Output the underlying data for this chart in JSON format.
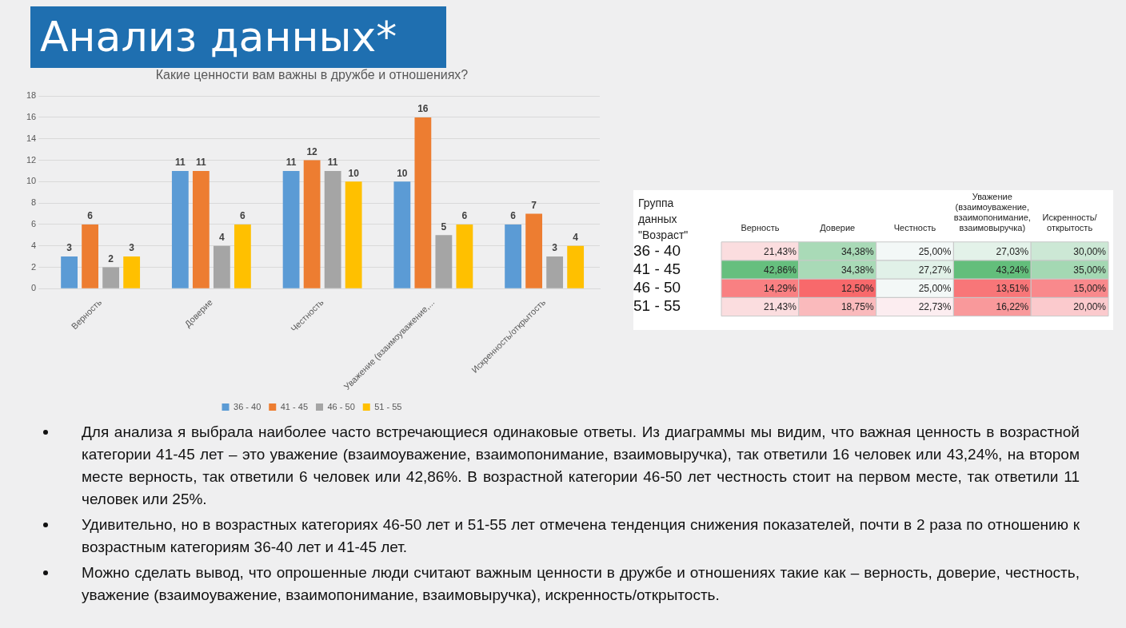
{
  "chart_data": [
    {
      "type": "bar",
      "title": "Анализ данных*",
      "subtitle": "Какие ценности вам важны в дружбе и отношениях?",
      "categories": [
        "Верность",
        "Доверие",
        "Честность",
        "Уважение (взаимоуважение,...",
        "Искренность/открытость"
      ],
      "series": [
        {
          "name": "36 - 40",
          "color": "#5b9bd5",
          "values": [
            3,
            11,
            11,
            10,
            6
          ]
        },
        {
          "name": "41 - 45",
          "color": "#ed7d31",
          "values": [
            6,
            11,
            12,
            16,
            7
          ]
        },
        {
          "name": "46 - 50",
          "color": "#a5a5a5",
          "values": [
            2,
            4,
            11,
            5,
            3
          ]
        },
        {
          "name": "51 - 55",
          "color": "#ffc000",
          "values": [
            3,
            6,
            10,
            6,
            4
          ]
        }
      ],
      "ylim": [
        0,
        18
      ],
      "yticks": [
        0,
        2,
        4,
        6,
        8,
        10,
        12,
        14,
        16,
        18
      ],
      "grid": "y",
      "legend": "bottom",
      "data_labels": true,
      "annotations": [
        "Для анализа я выбрала наиболее часто встречающиеся одинаковые ответы. Из диаграммы мы видим, что важная ценность в возрастной категории 41-45 лет – это уважение (взаимоуважение, взаимопонимание, взаимовыручка), так ответили 16 человек или 43,24%, на втором месте верность, так ответили 6 человек или 42,86%. В возрастной категории 46-50 лет честность стоит на первом месте, так ответили 11 человек или 25%.",
        "Удивительно, но в возрастных категориях 46-50 лет и 51-55 лет отмечена тенденция снижения показателей, почти в 2 раза по отношению к возрастным категориям 36-40 лет и 41-45 лет.",
        "Можно сделать вывод, что опрошенные люди считают важным ценности в дружбе и отношениях такие как – верность, доверие, честность, уважение (взаимоуважение, взаимопонимание, взаимовыручка), искренность/открытость."
      ]
    },
    {
      "type": "heatmap",
      "ylabel": "Группа данных \"Возраст\"",
      "categories": [
        "Верность",
        "Доверие",
        "Честность",
        "Уважение (взаимоуважение, взаимопонимание, взаимовыручка)",
        "Искренность/открытость"
      ],
      "y_categories": [
        "36 - 40",
        "41 - 45",
        "46 - 50",
        "51 - 55"
      ],
      "cells": [
        [
          21.43,
          34.38,
          25.0,
          27.03,
          30.0
        ],
        [
          42.86,
          34.38,
          27.27,
          43.24,
          35.0
        ],
        [
          14.29,
          12.5,
          25.0,
          13.51,
          15.0
        ],
        [
          21.43,
          18.75,
          22.73,
          16.22,
          20.0
        ]
      ],
      "cell_labels": [
        [
          "21,43%",
          "34,38%",
          "25,00%",
          "27,03%",
          "30,00%"
        ],
        [
          "42,86%",
          "34,38%",
          "27,27%",
          "43,24%",
          "35,00%"
        ],
        [
          "14,29%",
          "12,50%",
          "25,00%",
          "13,51%",
          "15,00%"
        ],
        [
          "21,43%",
          "18,75%",
          "22,73%",
          "16,22%",
          "20,00%"
        ]
      ]
    }
  ]
}
